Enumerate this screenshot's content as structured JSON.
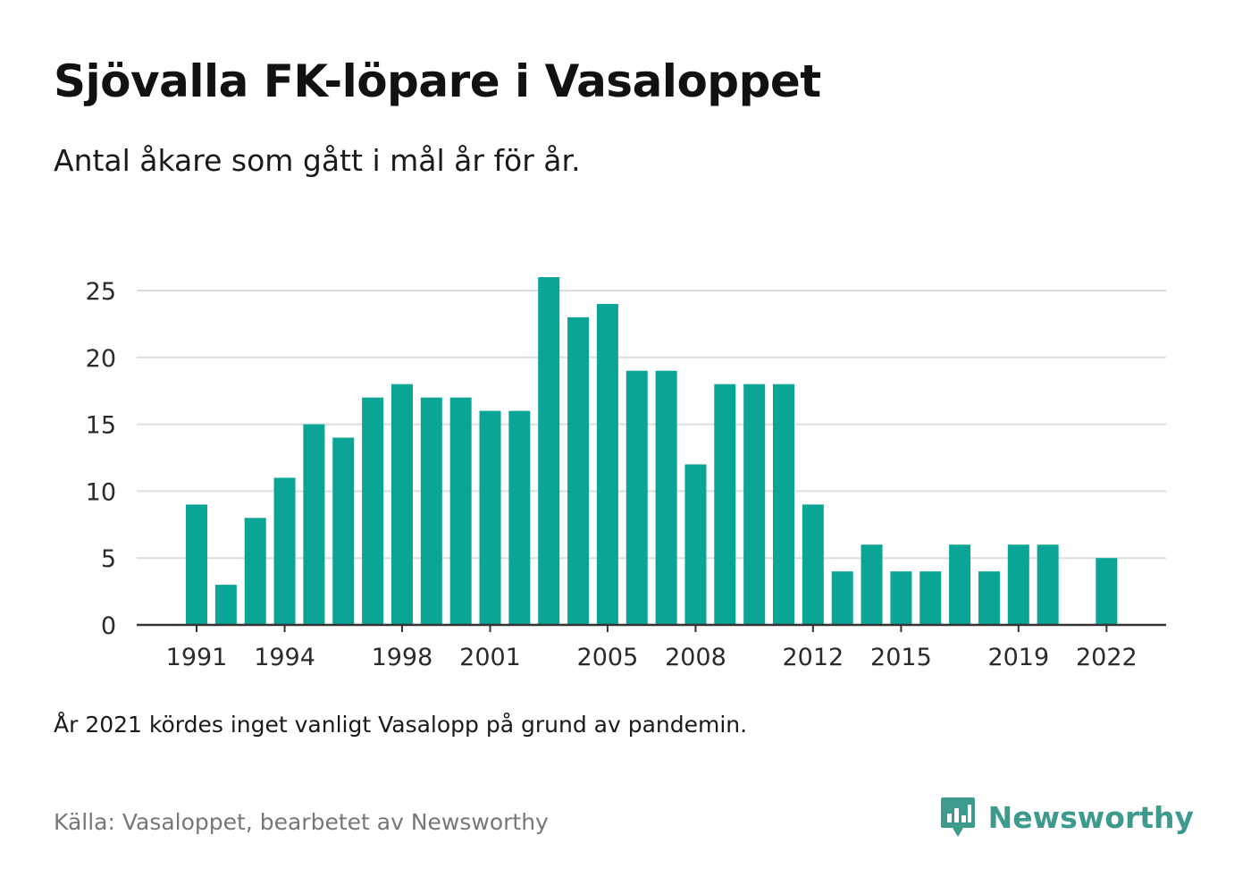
{
  "title": "Sjövalla FK-löpare i Vasaloppet",
  "subtitle": "Antal åkare som gått i mål år för år.",
  "note": "År 2021 kördes inget vanligt Vasalopp på grund av pandemin.",
  "source": "Källa: Vasaloppet, bearbetet av Newsworthy",
  "brand": {
    "name": "Newsworthy",
    "icon": "newsworthy-logo-icon",
    "color": "#3f9a8e"
  },
  "colors": {
    "bar": "#0ba597",
    "grid": "#dddddd",
    "axis": "#333333"
  },
  "chart_data": {
    "type": "bar",
    "categories": [
      1991,
      1992,
      1993,
      1994,
      1995,
      1996,
      1997,
      1998,
      1999,
      2000,
      2001,
      2002,
      2003,
      2004,
      2005,
      2006,
      2007,
      2008,
      2009,
      2010,
      2011,
      2012,
      2013,
      2014,
      2015,
      2016,
      2017,
      2018,
      2019,
      2020,
      2021,
      2022
    ],
    "values": [
      9,
      3,
      8,
      11,
      15,
      14,
      17,
      18,
      17,
      17,
      16,
      16,
      26,
      23,
      24,
      19,
      19,
      12,
      18,
      18,
      18,
      9,
      4,
      6,
      4,
      4,
      6,
      4,
      6,
      6,
      null,
      5
    ],
    "x_tick_labels": [
      "1991",
      "1994",
      "1998",
      "2001",
      "2005",
      "2008",
      "2012",
      "2015",
      "2019",
      "2022"
    ],
    "y_ticks": [
      0,
      5,
      10,
      15,
      20,
      25
    ],
    "ylim": [
      0,
      26
    ],
    "grid": true,
    "legend": "none"
  }
}
